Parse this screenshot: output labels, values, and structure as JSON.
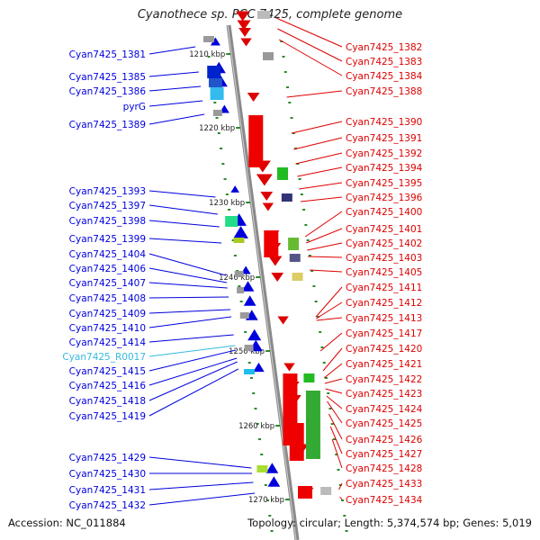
{
  "title": "Cyanothece sp. PCC 7425, complete genome",
  "accession": "Accession: NC_011884",
  "topology_line": "Topology: circular; Length: 5,374,574 bp; Genes: 5,019",
  "colors": {
    "forward": "#0000dd",
    "reverse": "#dd0000",
    "rna": "#33bbdd",
    "backbone": "#999999"
  },
  "ruler": [
    "1210 kbp",
    "1220 kbp",
    "1230 kbp",
    "1240 kbp",
    "1250 kbp",
    "1260 kbp",
    "1270 kbp"
  ],
  "left_labels": [
    {
      "text": "Cyan7425_1381",
      "kind": "gene"
    },
    {
      "text": "Cyan7425_1385",
      "kind": "gene"
    },
    {
      "text": "Cyan7425_1386",
      "kind": "gene"
    },
    {
      "text": "pyrG",
      "kind": "gene"
    },
    {
      "text": "Cyan7425_1389",
      "kind": "gene"
    },
    {
      "text": "Cyan7425_1393",
      "kind": "gene"
    },
    {
      "text": "Cyan7425_1397",
      "kind": "gene"
    },
    {
      "text": "Cyan7425_1398",
      "kind": "gene"
    },
    {
      "text": "Cyan7425_1399",
      "kind": "gene"
    },
    {
      "text": "Cyan7425_1404",
      "kind": "gene"
    },
    {
      "text": "Cyan7425_1406",
      "kind": "gene"
    },
    {
      "text": "Cyan7425_1407",
      "kind": "gene"
    },
    {
      "text": "Cyan7425_1408",
      "kind": "gene"
    },
    {
      "text": "Cyan7425_1409",
      "kind": "gene"
    },
    {
      "text": "Cyan7425_1410",
      "kind": "gene"
    },
    {
      "text": "Cyan7425_1414",
      "kind": "gene"
    },
    {
      "text": "Cyan7425_R0017",
      "kind": "rna"
    },
    {
      "text": "Cyan7425_1415",
      "kind": "gene"
    },
    {
      "text": "Cyan7425_1416",
      "kind": "gene"
    },
    {
      "text": "Cyan7425_1418",
      "kind": "gene"
    },
    {
      "text": "Cyan7425_1419",
      "kind": "gene"
    },
    {
      "text": "Cyan7425_1429",
      "kind": "gene"
    },
    {
      "text": "Cyan7425_1430",
      "kind": "gene"
    },
    {
      "text": "Cyan7425_1431",
      "kind": "gene"
    },
    {
      "text": "Cyan7425_1432",
      "kind": "gene"
    }
  ],
  "right_labels": [
    "Cyan7425_1382",
    "Cyan7425_1383",
    "Cyan7425_1384",
    "Cyan7425_1388",
    "Cyan7425_1390",
    "Cyan7425_1391",
    "Cyan7425_1392",
    "Cyan7425_1394",
    "Cyan7425_1395",
    "Cyan7425_1396",
    "Cyan7425_1400",
    "Cyan7425_1401",
    "Cyan7425_1402",
    "Cyan7425_1403",
    "Cyan7425_1405",
    "Cyan7425_1411",
    "Cyan7425_1412",
    "Cyan7425_1413",
    "Cyan7425_1417",
    "Cyan7425_1420",
    "Cyan7425_1421",
    "Cyan7425_1422",
    "Cyan7425_1423",
    "Cyan7425_1424",
    "Cyan7425_1425",
    "Cyan7425_1426",
    "Cyan7425_1427",
    "Cyan7425_1428",
    "Cyan7425_1433",
    "Cyan7425_1434"
  ]
}
